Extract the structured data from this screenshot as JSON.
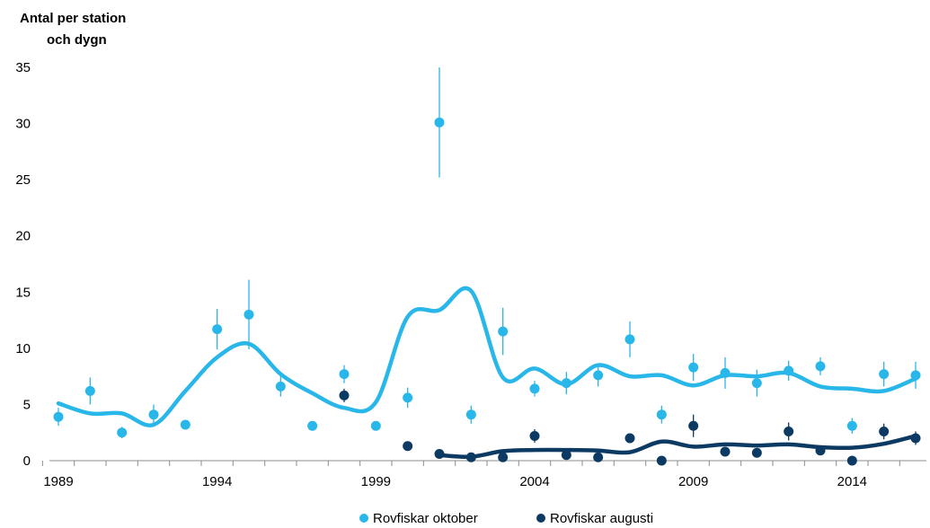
{
  "chart_data": {
    "type": "scatter",
    "ylabel": [
      "Antal per station",
      "och dygn"
    ],
    "xlabel": "",
    "xlim": [
      1989,
      2016
    ],
    "ylim": [
      0,
      35
    ],
    "yticks": [
      0,
      5,
      10,
      15,
      20,
      25,
      30,
      35
    ],
    "xtick_labels": [
      1989,
      1994,
      1999,
      2004,
      2009,
      2014
    ],
    "grid": false,
    "legend_position": "bottom-center",
    "series": [
      {
        "name": "Rovfiskar oktober",
        "color": "#29b6e9",
        "points": [
          {
            "x": 1989,
            "y": 3.9,
            "err": 0.8
          },
          {
            "x": 1990,
            "y": 6.2,
            "err": 1.2
          },
          {
            "x": 1991,
            "y": 2.5,
            "err": 0.5
          },
          {
            "x": 1992,
            "y": 4.1,
            "err": 0.9
          },
          {
            "x": 1993,
            "y": 3.2,
            "err": 0.3
          },
          {
            "x": 1994,
            "y": 11.7,
            "err": 1.8
          },
          {
            "x": 1995,
            "y": 13.0,
            "err": 3.1
          },
          {
            "x": 1996,
            "y": 6.6,
            "err": 0.9
          },
          {
            "x": 1997,
            "y": 3.1,
            "err": 0.3
          },
          {
            "x": 1998,
            "y": 7.7,
            "err": 0.8
          },
          {
            "x": 1999,
            "y": 3.1,
            "err": 0.3
          },
          {
            "x": 2000,
            "y": 5.6,
            "err": 0.9
          },
          {
            "x": 2001,
            "y": 30.1,
            "err": 4.9
          },
          {
            "x": 2002,
            "y": 4.1,
            "err": 0.8
          },
          {
            "x": 2003,
            "y": 11.5,
            "err": 2.1
          },
          {
            "x": 2004,
            "y": 6.4,
            "err": 0.7
          },
          {
            "x": 2005,
            "y": 6.9,
            "err": 1.0
          },
          {
            "x": 2006,
            "y": 7.6,
            "err": 1.0
          },
          {
            "x": 2007,
            "y": 10.8,
            "err": 1.6
          },
          {
            "x": 2008,
            "y": 4.1,
            "err": 0.8
          },
          {
            "x": 2009,
            "y": 8.3,
            "err": 1.2
          },
          {
            "x": 2010,
            "y": 7.8,
            "err": 1.4
          },
          {
            "x": 2011,
            "y": 6.9,
            "err": 1.2
          },
          {
            "x": 2012,
            "y": 8.0,
            "err": 0.9
          },
          {
            "x": 2013,
            "y": 8.4,
            "err": 0.8
          },
          {
            "x": 2014,
            "y": 3.1,
            "err": 0.7
          },
          {
            "x": 2015,
            "y": 7.7,
            "err": 1.1
          },
          {
            "x": 2016,
            "y": 7.6,
            "err": 1.2
          }
        ],
        "trend": [
          [
            1989,
            5.1
          ],
          [
            1990,
            4.2
          ],
          [
            1991,
            4.2
          ],
          [
            1992,
            3.2
          ],
          [
            1993,
            6.2
          ],
          [
            1994,
            9.2
          ],
          [
            1995,
            10.4
          ],
          [
            1996,
            7.7
          ],
          [
            1997,
            6.0
          ],
          [
            1998,
            4.7
          ],
          [
            1999,
            5.2
          ],
          [
            2000,
            12.8
          ],
          [
            2001,
            13.4
          ],
          [
            2002,
            15.1
          ],
          [
            2003,
            7.4
          ],
          [
            2004,
            8.2
          ],
          [
            2005,
            6.8
          ],
          [
            2006,
            8.5
          ],
          [
            2007,
            7.5
          ],
          [
            2008,
            7.6
          ],
          [
            2009,
            6.7
          ],
          [
            2010,
            7.6
          ],
          [
            2011,
            7.5
          ],
          [
            2012,
            7.8
          ],
          [
            2013,
            6.6
          ],
          [
            2014,
            6.4
          ],
          [
            2015,
            6.2
          ],
          [
            2016,
            7.3
          ]
        ]
      },
      {
        "name": "Rovfiskar augusti",
        "color": "#0d3a63",
        "points": [
          {
            "x": 1998,
            "y": 5.8,
            "err": 0.6
          },
          {
            "x": 2000,
            "y": 1.3,
            "err": 0.2
          },
          {
            "x": 2001,
            "y": 0.6,
            "err": 0.1
          },
          {
            "x": 2002,
            "y": 0.3,
            "err": 0.1
          },
          {
            "x": 2003,
            "y": 0.3,
            "err": 0.1
          },
          {
            "x": 2004,
            "y": 2.2,
            "err": 0.6
          },
          {
            "x": 2005,
            "y": 0.5,
            "err": 0.1
          },
          {
            "x": 2006,
            "y": 0.3,
            "err": 0.1
          },
          {
            "x": 2007,
            "y": 2.0,
            "err": 0.3
          },
          {
            "x": 2008,
            "y": 0.0,
            "err": 0.0
          },
          {
            "x": 2009,
            "y": 3.1,
            "err": 1.0
          },
          {
            "x": 2010,
            "y": 0.8,
            "err": 0.2
          },
          {
            "x": 2011,
            "y": 0.7,
            "err": 0.1
          },
          {
            "x": 2012,
            "y": 2.6,
            "err": 0.8
          },
          {
            "x": 2013,
            "y": 0.9,
            "err": 0.3
          },
          {
            "x": 2014,
            "y": 0.0,
            "err": 0.0
          },
          {
            "x": 2015,
            "y": 2.6,
            "err": 0.7
          },
          {
            "x": 2016,
            "y": 2.0,
            "err": 0.6
          }
        ],
        "trend": [
          [
            2001,
            0.5
          ],
          [
            2002,
            0.35
          ],
          [
            2003,
            0.85
          ],
          [
            2004,
            0.95
          ],
          [
            2005,
            0.95
          ],
          [
            2006,
            0.9
          ],
          [
            2007,
            0.75
          ],
          [
            2008,
            1.7
          ],
          [
            2009,
            1.25
          ],
          [
            2010,
            1.45
          ],
          [
            2011,
            1.35
          ],
          [
            2012,
            1.45
          ],
          [
            2013,
            1.2
          ],
          [
            2014,
            1.15
          ],
          [
            2015,
            1.5
          ],
          [
            2016,
            2.2
          ]
        ]
      }
    ]
  }
}
